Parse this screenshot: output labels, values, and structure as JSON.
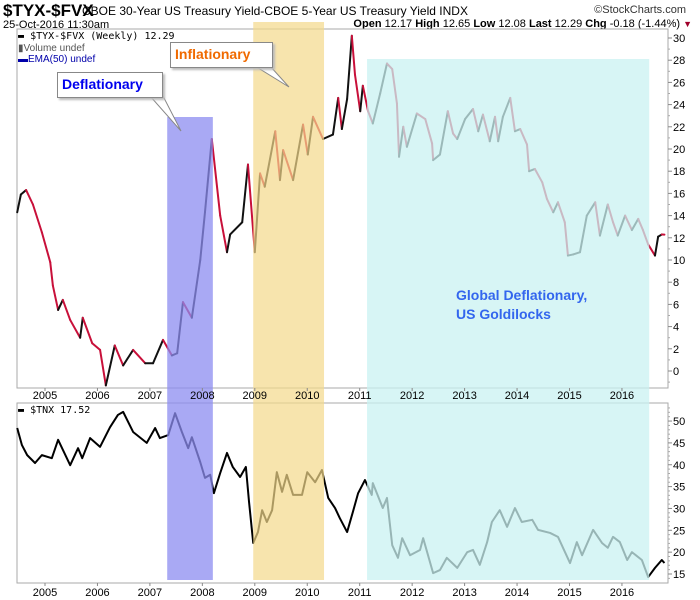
{
  "header": {
    "symbol": "$TYX-$FVX",
    "description": "CBOE 30-Year US Treasury Yield-CBOE 5-Year US Treasury Yield",
    "exchange": "INDX",
    "date": "25-Oct-2016 11:30am",
    "copyright": "©StockCharts.com",
    "open_label": "Open",
    "open": "12.17",
    "high_label": "High",
    "high": "12.65",
    "low_label": "Low",
    "low": "12.08",
    "last_label": "Last",
    "last": "12.29",
    "chg_label": "Chg",
    "chg": "-0.18 (-1.44%)",
    "down_icon": "triangle-down-icon"
  },
  "legend": {
    "main": "$TYX-$FVX (Weekly) 12.29",
    "volume": "Volume undef",
    "ema": "EMA(50) undef",
    "lower": "$TNX 17.52"
  },
  "annotations": {
    "deflationary": "Deflationary",
    "inflationary": "Inflationary",
    "global_line1": "Global Deflationary,",
    "global_line2": "US Goldilocks"
  },
  "colors": {
    "up": "#111111",
    "down": "#c8103a",
    "deflationary_band": "#8c8cf0",
    "inflationary_band": "#f3d98a",
    "goldilocks_band": "#c9f2f2",
    "deflationary_text": "#0000ee",
    "inflationary_text": "#f06a00",
    "goldilocks_text": "#3366ee"
  },
  "chart_data": [
    {
      "type": "line",
      "title": "$TYX-$FVX (Weekly)",
      "x_ticks": [
        "2005",
        "2006",
        "2007",
        "2008",
        "2009",
        "2010",
        "2011",
        "2012",
        "2013",
        "2014",
        "2015",
        "2016"
      ],
      "y_ticks": [
        0,
        2,
        4,
        6,
        8,
        10,
        12,
        14,
        16,
        18,
        20,
        22,
        24,
        26,
        28,
        30
      ],
      "ylim": [
        -1.5,
        31
      ],
      "grid": false,
      "bands": [
        {
          "label": "Deflationary",
          "from": 2007.33,
          "to": 2008.2
        },
        {
          "label": "Inflationary",
          "from": 2008.97,
          "to": 2010.32
        },
        {
          "label": "Global Deflationary, US Goldilocks",
          "from": 2011.14,
          "to": 2016.52
        }
      ],
      "x": [
        2004.47,
        2004.54,
        2004.64,
        2004.77,
        2004.94,
        2005.1,
        2005.15,
        2005.25,
        2005.34,
        2005.48,
        2005.67,
        2005.72,
        2005.9,
        2006.05,
        2006.16,
        2006.33,
        2006.49,
        2006.68,
        2006.91,
        2007.06,
        2007.25,
        2007.42,
        2007.52,
        2007.63,
        2007.8,
        2007.96,
        2008.05,
        2008.18,
        2008.34,
        2008.47,
        2008.53,
        2008.76,
        2008.87,
        2009.0,
        2009.1,
        2009.19,
        2009.39,
        2009.48,
        2009.54,
        2009.73,
        2009.92,
        2010.01,
        2010.11,
        2010.3,
        2010.49,
        2010.59,
        2010.66,
        2010.76,
        2010.85,
        2010.91,
        2011.01,
        2011.06,
        2011.16,
        2011.25,
        2011.39,
        2011.52,
        2011.62,
        2011.71,
        2011.75,
        2011.83,
        2011.9,
        2012.09,
        2012.25,
        2012.38,
        2012.4,
        2012.53,
        2012.68,
        2012.78,
        2012.86,
        2013.01,
        2013.16,
        2013.26,
        2013.35,
        2013.48,
        2013.58,
        2013.64,
        2013.73,
        2013.87,
        2013.96,
        2014.06,
        2014.19,
        2014.23,
        2014.34,
        2014.48,
        2014.57,
        2014.69,
        2014.78,
        2014.91,
        2014.97,
        2015.07,
        2015.2,
        2015.33,
        2015.49,
        2015.58,
        2015.73,
        2015.83,
        2015.92,
        2016.06,
        2016.19,
        2016.31,
        2016.4,
        2016.5,
        2016.63,
        2016.69,
        2016.76,
        2016.81
      ],
      "y": [
        14.3,
        15.9,
        16.3,
        15.0,
        12.5,
        9.8,
        7.7,
        5.5,
        6.4,
        4.6,
        3.0,
        4.8,
        2.5,
        1.9,
        -1.3,
        2.3,
        0.5,
        1.9,
        0.7,
        0.7,
        2.8,
        1.4,
        1.6,
        6.2,
        4.8,
        10.0,
        14.3,
        20.9,
        14.0,
        10.7,
        12.3,
        13.4,
        18.6,
        10.7,
        17.8,
        16.6,
        21.6,
        17.2,
        19.9,
        17.2,
        22.2,
        19.5,
        22.9,
        20.9,
        21.3,
        24.6,
        21.8,
        24.5,
        30.2,
        26.7,
        23.4,
        25.7,
        23.4,
        22.3,
        25.0,
        27.7,
        27.2,
        24.1,
        19.3,
        22.0,
        20.2,
        23.2,
        22.7,
        20.5,
        19.0,
        19.5,
        23.4,
        21.4,
        20.9,
        22.7,
        23.6,
        21.6,
        23.1,
        20.7,
        22.9,
        20.7,
        22.9,
        24.6,
        21.6,
        21.8,
        20.4,
        18.0,
        18.2,
        17.0,
        15.5,
        14.3,
        15.2,
        13.4,
        10.4,
        10.5,
        10.7,
        14.0,
        15.2,
        12.2,
        15.0,
        13.4,
        12.2,
        14.0,
        12.7,
        13.7,
        12.7,
        11.4,
        10.4,
        12.1,
        12.3,
        12.29
      ]
    },
    {
      "type": "line",
      "title": "$TNX",
      "x_ticks": [
        "2005",
        "2006",
        "2007",
        "2008",
        "2009",
        "2010",
        "2011",
        "2012",
        "2013",
        "2014",
        "2015",
        "2016"
      ],
      "y_ticks": [
        15,
        20,
        25,
        30,
        35,
        40,
        45,
        50
      ],
      "ylim": [
        13,
        54
      ],
      "grid": false,
      "x": [
        2004.47,
        2004.56,
        2004.66,
        2004.81,
        2004.94,
        2005.13,
        2005.25,
        2005.48,
        2005.63,
        2005.71,
        2005.86,
        2006.05,
        2006.24,
        2006.39,
        2006.49,
        2006.68,
        2006.94,
        2007.1,
        2007.19,
        2007.35,
        2007.48,
        2007.61,
        2007.73,
        2007.8,
        2007.96,
        2008.05,
        2008.15,
        2008.22,
        2008.34,
        2008.47,
        2008.58,
        2008.72,
        2008.83,
        2008.89,
        2008.97,
        2009.06,
        2009.14,
        2009.23,
        2009.33,
        2009.42,
        2009.52,
        2009.61,
        2009.73,
        2009.9,
        2010.0,
        2010.15,
        2010.28,
        2010.4,
        2010.53,
        2010.62,
        2010.76,
        2010.87,
        2010.97,
        2011.1,
        2011.23,
        2011.25,
        2011.44,
        2011.52,
        2011.62,
        2011.73,
        2011.81,
        2011.96,
        2012.15,
        2012.21,
        2012.4,
        2012.53,
        2012.66,
        2012.86,
        2013.05,
        2013.16,
        2013.29,
        2013.43,
        2013.52,
        2013.67,
        2013.81,
        2013.96,
        2014.09,
        2014.29,
        2014.4,
        2014.63,
        2014.78,
        2015.01,
        2015.14,
        2015.24,
        2015.45,
        2015.62,
        2015.73,
        2015.83,
        2015.96,
        2016.1,
        2016.19,
        2016.38,
        2016.5,
        2016.63,
        2016.76,
        2016.81
      ],
      "y": [
        48.4,
        44.5,
        42.2,
        40.4,
        42.2,
        41.5,
        45.7,
        39.9,
        43.8,
        41.5,
        46.1,
        44.1,
        48.6,
        51.4,
        52.1,
        47.5,
        45.0,
        48.4,
        46.1,
        46.8,
        51.8,
        47.5,
        43.8,
        46.3,
        40.6,
        37.0,
        37.7,
        33.5,
        38.1,
        42.7,
        39.5,
        37.2,
        39.5,
        31.5,
        22.1,
        24.6,
        29.6,
        26.9,
        29.6,
        38.3,
        33.8,
        37.7,
        33.1,
        33.1,
        38.3,
        36.0,
        38.8,
        32.4,
        30.1,
        27.8,
        24.6,
        29.2,
        33.5,
        36.5,
        33.1,
        35.8,
        30.1,
        32.4,
        21.6,
        18.7,
        23.2,
        19.3,
        20.5,
        23.2,
        15.2,
        15.9,
        18.7,
        16.4,
        20.0,
        20.5,
        17.1,
        22.3,
        26.9,
        29.6,
        25.8,
        30.1,
        26.9,
        27.4,
        25.1,
        24.4,
        23.5,
        17.5,
        22.3,
        19.3,
        25.1,
        22.1,
        21.0,
        23.5,
        22.3,
        18.2,
        20.0,
        18.2,
        14.3,
        16.4,
        18.2,
        17.52
      ]
    }
  ]
}
